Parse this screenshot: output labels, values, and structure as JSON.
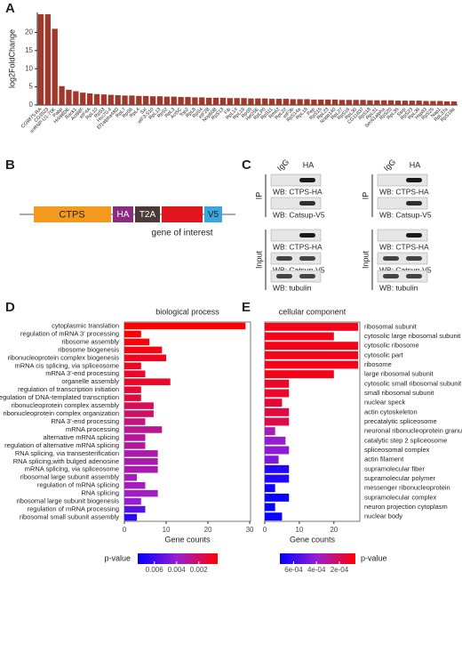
{
  "panel_labels": [
    "A",
    "B",
    "C",
    "D",
    "E"
  ],
  "construct": {
    "parts": [
      "CTPS",
      "HA",
      "T2A",
      "V5"
    ],
    "note": "gene of interest"
  },
  "blots": {
    "lanes": [
      "IgG",
      "HA"
    ],
    "sections": [
      "IP",
      "Input"
    ],
    "wb": [
      "WB: CTPS-HA",
      "WB: Catsup-V5",
      "WB: tubulin"
    ]
  },
  "chart_data": [
    {
      "type": "bar",
      "y_label": "log2FoldChange",
      "color": "#a0392b",
      "categories": [
        "CG9875-RA",
        "CG3523",
        "snRNP-U1-70K",
        "Pabp",
        "Hrb98DE",
        "Rack1",
        "Act88F",
        "eIF4A",
        "RpL10",
        "RpS3",
        "Hsc70-4",
        "Ef1alpha48D",
        "RpL7",
        "RpS6",
        "RpL4",
        "Sxl",
        "eIF3-S10",
        "RpL13",
        "RpS2",
        "RpL3",
        "Act5C",
        "Top2",
        "RpL8",
        "RpS4",
        "eIF2B",
        "Nop60B",
        "RpS13",
        "Fib",
        "RpL14",
        "RpL19",
        "RpS9",
        "Hel25E",
        "RpLP0",
        "RpS11",
        "Rm62",
        "RpL22",
        "eIF3b",
        "RpS14a",
        "RpL18",
        "Pep",
        "RpS15",
        "RpL23",
        "Nopp140",
        "RpL27",
        "RpS16",
        "RpL30",
        "CG11837",
        "RpS18",
        "RpL31",
        "Sec61alpha",
        "RpS20",
        "RpL35",
        "Ssrp",
        "RpS23",
        "RpL36",
        "Hsp83",
        "RpS25",
        "Nap1",
        "RpL37a",
        "RpS19a"
      ],
      "values": [
        25,
        25,
        21,
        5.2,
        4.2,
        3.8,
        3.4,
        3.2,
        3.0,
        2.9,
        2.8,
        2.7,
        2.6,
        2.6,
        2.5,
        2.5,
        2.4,
        2.4,
        2.3,
        2.3,
        2.2,
        2.2,
        2.1,
        2.1,
        2.0,
        2.0,
        2.0,
        1.9,
        1.9,
        1.9,
        1.8,
        1.8,
        1.8,
        1.7,
        1.7,
        1.7,
        1.6,
        1.6,
        1.6,
        1.5,
        1.5,
        1.5,
        1.5,
        1.4,
        1.4,
        1.4,
        1.4,
        1.3,
        1.3,
        1.3,
        1.3,
        1.2,
        1.2,
        1.2,
        1.2,
        1.1,
        1.1,
        1.1,
        1.0,
        1.0
      ],
      "ylim": [
        0,
        25.5
      ],
      "yticks": [
        0,
        5,
        10,
        15,
        20
      ]
    },
    {
      "type": "barh",
      "title": "biological process",
      "x_label": "Gene counts",
      "categories": [
        "cytoplasmic translation",
        "regulation of mRNA 3' processing",
        "ribosome assembly",
        "ribosome biogenesis",
        "ribonucleoprotein complex biogenesis",
        "mRNA cis splicing, via spliceosome",
        "mRNA 3'-end processing",
        "organelle assembly",
        "regulation of transcription initiation",
        "regulation of DNA-templated transcription",
        "ribonucleoprotein complex assembly",
        "ribonucleoprotein complex organization",
        "RNA 3'-end processing",
        "mRNA processing",
        "alternative mRNA splicing",
        "regulation of alternative mRNA splicing",
        "RNA splicing, via transesterification",
        "RNA splicing,with bulged adenosine",
        "mRNA splicing, via spliceosome",
        "ribosomal large subunit assembly",
        "regulation of mRNA splicing",
        "RNA splicing",
        "ribosomal large subunit biogenesis",
        "regulation of mRNA processing",
        "ribosomal small subunit assembly"
      ],
      "values": [
        29,
        4,
        6,
        9,
        10,
        4,
        5,
        11,
        4,
        4,
        7,
        7,
        5,
        9,
        5,
        5,
        8,
        8,
        8,
        3,
        5,
        8,
        4,
        5,
        3
      ],
      "pvalues": [
        0.0003,
        0.0003,
        0.0005,
        0.0006,
        0.0008,
        0.0009,
        0.001,
        0.001,
        0.0012,
        0.0013,
        0.0018,
        0.002,
        0.0025,
        0.0028,
        0.003,
        0.003,
        0.0033,
        0.0033,
        0.0033,
        0.0035,
        0.0036,
        0.0037,
        0.004,
        0.0055,
        0.0065
      ],
      "xlim": [
        0,
        30.2
      ],
      "xticks": [
        0,
        10,
        20,
        30
      ],
      "legend": {
        "title": "p-value",
        "lim": [
          0.0075,
          0.0003
        ],
        "ticks": [
          0.006,
          0.004,
          0.002
        ],
        "gradient": [
          "#0000ff",
          "#9b1fd0",
          "#ff0000"
        ]
      }
    },
    {
      "type": "barh",
      "title": "cellular component",
      "x_label": "Gene counts",
      "categories": [
        "ribosomal subunit",
        "cytosolic large ribosomal subunit",
        "cytosolic ribosome",
        "cytosolic part",
        "ribosome",
        "large ribosomal subunit",
        "cytosolic small ribosomal subunit",
        "small ribosomal subunit",
        "nuclear speck",
        "actin cytoskeleton",
        "precatalytic spliceosome",
        "neuronal ribonucleoprotein granule",
        "catalytic step 2 spliceosome",
        "spliceosomal complex",
        "actin filament",
        "supramolecular fiber",
        "supramolecular polymer",
        "messenger ribonucleoprotein",
        "supramolecular complex",
        "neuron projection cytoplasm",
        "nuclear body"
      ],
      "values": [
        27,
        20,
        27,
        27,
        27,
        20,
        7,
        7,
        5,
        7,
        7,
        3,
        6,
        7,
        4,
        7,
        7,
        3,
        7,
        3,
        5
      ],
      "pvalues": [
        0.0001,
        0.0001,
        0.0001,
        0.0001,
        0.0001,
        0.0001,
        0.00012,
        0.00013,
        0.00015,
        0.00016,
        0.00018,
        0.00035,
        0.0004,
        0.00042,
        0.00045,
        0.00065,
        0.00065,
        0.00068,
        0.0007,
        0.0007,
        0.0007
      ],
      "xlim": [
        0,
        27.5
      ],
      "xticks": [
        0,
        10,
        20
      ],
      "legend": {
        "title": "p-value",
        "lim": [
          0.00072,
          6e-05
        ],
        "ticks": [
          {
            "value": 0.0006,
            "label": "6e-04"
          },
          {
            "value": 0.0004,
            "label": "4e-04"
          },
          {
            "value": 0.0002,
            "label": "2e-04"
          }
        ],
        "gradient": [
          "#0000ff",
          "#9b1fd0",
          "#ff0000"
        ]
      }
    }
  ]
}
